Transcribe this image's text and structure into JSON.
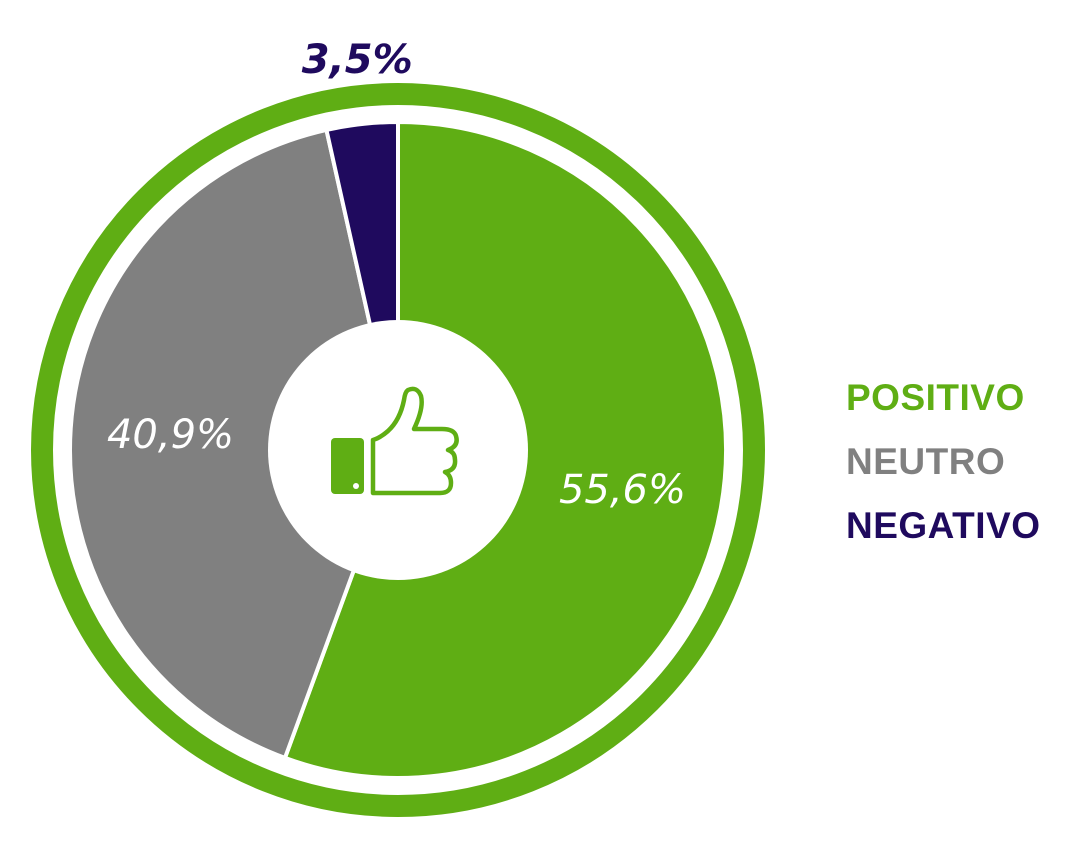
{
  "chart_data": {
    "type": "pie",
    "variant": "donut",
    "slices": [
      {
        "name": "POSITIVO",
        "value": 55.6,
        "label": "55,6%",
        "color": "#5fae14",
        "label_position": "inside",
        "label_color": "#ffffff"
      },
      {
        "name": "NEUTRO",
        "value": 40.9,
        "label": "40,9%",
        "color": "#808080",
        "label_position": "inside",
        "label_color": "#ffffff"
      },
      {
        "name": "NEGATIVO",
        "value": 3.5,
        "label": "3,5%",
        "color": "#1f0a5e",
        "label_position": "outside",
        "label_color": "#1f0a5e"
      }
    ],
    "start_angle": "12 o'clock",
    "direction": "clockwise",
    "ring_color": "#5fae14",
    "center_icon": "thumbs-up-icon",
    "legend": {
      "placement": "right",
      "entries": [
        {
          "label": "POSITIVO",
          "color": "#5fae14"
        },
        {
          "label": "NEUTRO",
          "color": "#808080"
        },
        {
          "label": "NEGATIVO",
          "color": "#1f0a5e"
        }
      ]
    }
  }
}
